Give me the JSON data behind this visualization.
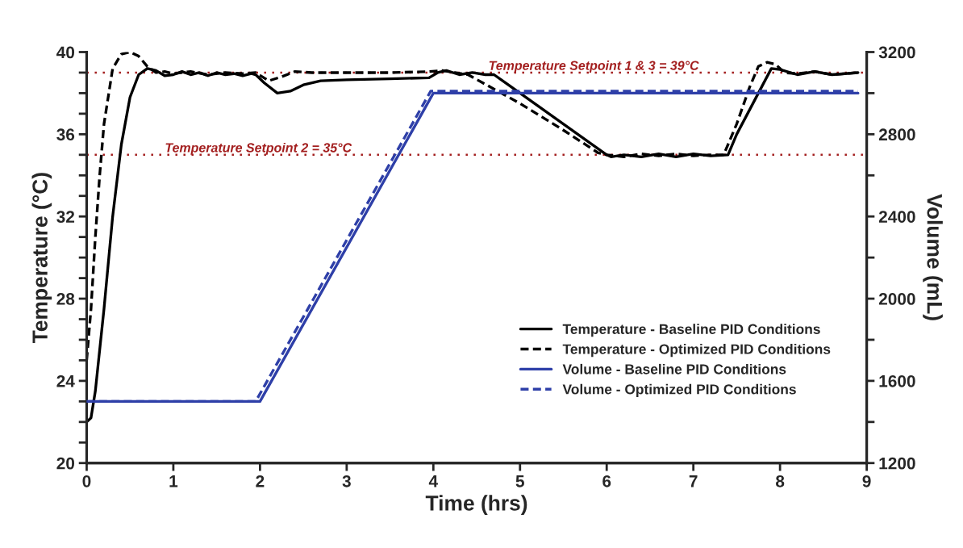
{
  "chart_data": {
    "type": "line",
    "xlabel": "Time (hrs)",
    "ylabel": "Temperature (°C)",
    "y2label": "Volume (mL)",
    "xlim": [
      0,
      9
    ],
    "xticks": [
      0,
      1,
      2,
      3,
      4,
      5,
      6,
      7,
      8,
      9
    ],
    "ylim": [
      20,
      40
    ],
    "yticks": [
      20,
      {
        "value": 21,
        "label": null
      },
      {
        "value": 22,
        "label": null
      },
      {
        "value": 23,
        "label": null
      },
      24,
      {
        "value": 25,
        "label": null
      },
      {
        "value": 26,
        "label": null
      },
      {
        "value": 27,
        "label": null
      },
      28,
      {
        "value": 29,
        "label": null
      },
      {
        "value": 30,
        "label": null
      },
      {
        "value": 31,
        "label": null
      },
      32,
      {
        "value": 33,
        "label": null
      },
      {
        "value": 34,
        "label": null
      },
      {
        "value": 35,
        "label": null
      },
      36,
      {
        "value": 37,
        "label": null
      },
      {
        "value": 38,
        "label": null
      },
      {
        "value": 39,
        "label": null
      },
      40
    ],
    "y2lim": [
      1200,
      3200
    ],
    "y2ticks": [
      1200,
      {
        "value": 1400,
        "label": null
      },
      1600,
      {
        "value": 1800,
        "label": null
      },
      2000,
      {
        "value": 2200,
        "label": null
      },
      2400,
      {
        "value": 2600,
        "label": null
      },
      2800,
      {
        "value": 3000,
        "label": null
      },
      3200
    ],
    "grid": false,
    "legend": "bottom right",
    "marker": "none",
    "series": [
      {
        "name": "Temperature - Baseline PID Conditions",
        "color": "#000000",
        "line_style": "solid",
        "x": [
          0,
          0.05,
          0.1,
          0.2,
          0.3,
          0.4,
          0.5,
          0.6,
          0.7,
          0.8,
          0.9,
          1.0,
          1.1,
          1.2,
          1.3,
          1.4,
          1.5,
          1.6,
          1.7,
          1.8,
          1.9,
          1.95,
          2.05,
          2.2,
          2.35,
          2.5,
          2.7,
          3.0,
          3.5,
          3.95,
          4.05,
          4.15,
          4.3,
          4.45,
          4.6,
          4.7,
          4.8,
          5.0,
          5.5,
          6.0,
          6.05,
          6.2,
          6.4,
          6.6,
          6.8,
          7.0,
          7.2,
          7.4,
          7.5,
          7.7,
          7.9,
          8.0,
          8.2,
          8.4,
          8.6,
          8.9
        ],
        "values": [
          22,
          22.2,
          23.5,
          27.5,
          32,
          35.5,
          37.8,
          38.9,
          39.2,
          39.1,
          38.85,
          38.9,
          39.05,
          38.9,
          39.0,
          38.85,
          39.0,
          38.9,
          38.95,
          38.85,
          38.95,
          38.9,
          38.5,
          38.0,
          38.1,
          38.4,
          38.6,
          38.65,
          38.7,
          38.75,
          39.0,
          39.1,
          38.9,
          39.0,
          38.9,
          38.9,
          38.6,
          38.0,
          36.5,
          35,
          34.9,
          35.0,
          34.9,
          35.05,
          34.9,
          35.05,
          34.95,
          35.0,
          36.0,
          37.6,
          39.2,
          39.15,
          38.9,
          39.05,
          38.9,
          39.0
        ]
      },
      {
        "name": "Temperature - Optimized PID Conditions",
        "color": "#000000",
        "line_style": "dashed",
        "x": [
          0,
          0.05,
          0.1,
          0.15,
          0.2,
          0.3,
          0.4,
          0.5,
          0.6,
          0.7,
          0.8,
          0.9,
          1.0,
          1.2,
          1.4,
          1.6,
          1.8,
          1.95,
          2.1,
          2.25,
          2.4,
          2.6,
          3.0,
          3.5,
          3.95,
          4.1,
          4.25,
          4.4,
          5.0,
          5.5,
          5.9,
          6.0,
          6.2,
          6.4,
          6.6,
          6.8,
          7.0,
          7.2,
          7.35,
          7.5,
          7.65,
          7.75,
          7.85,
          7.95,
          8.05,
          8.2,
          8.4,
          8.6,
          8.9
        ],
        "values": [
          25,
          27.5,
          31,
          34,
          36.5,
          39.2,
          39.9,
          40,
          39.8,
          39.3,
          39.0,
          39.05,
          38.95,
          39.05,
          38.9,
          39.0,
          38.95,
          39.0,
          38.6,
          38.8,
          39.05,
          39.0,
          39.0,
          39.0,
          39.05,
          39.1,
          39.0,
          38.9,
          37.5,
          36.2,
          35.1,
          35.0,
          34.9,
          35.05,
          34.95,
          35.05,
          34.95,
          35.0,
          35.0,
          36.5,
          38.3,
          39.3,
          39.5,
          39.4,
          39.0,
          38.95,
          39.05,
          38.9,
          39.0
        ]
      },
      {
        "name": "Volume - Baseline PID Conditions",
        "color": "#2e3fa8",
        "line_style": "solid",
        "axis": "y2",
        "x": [
          0,
          2.0,
          4.0,
          8.9
        ],
        "values": [
          1500,
          1500,
          3000,
          3000
        ]
      },
      {
        "name": "Volume - Optimized PID Conditions",
        "color": "#2e3fa8",
        "line_style": "dashed",
        "axis": "y2",
        "x": [
          0,
          1.95,
          3.97,
          8.9
        ],
        "values": [
          1500,
          1500,
          3010,
          3010
        ]
      }
    ],
    "ref_lines": [
      {
        "axis": "y",
        "value": 39,
        "label": "Temperature Setpoint 1 & 3 = 39°C",
        "color": "#a31f1f",
        "line_style": "dotted"
      },
      {
        "axis": "y",
        "value": 35,
        "label": "Temperature Setpoint 2 = 35°C",
        "color": "#a31f1f",
        "line_style": "dotted"
      }
    ]
  }
}
